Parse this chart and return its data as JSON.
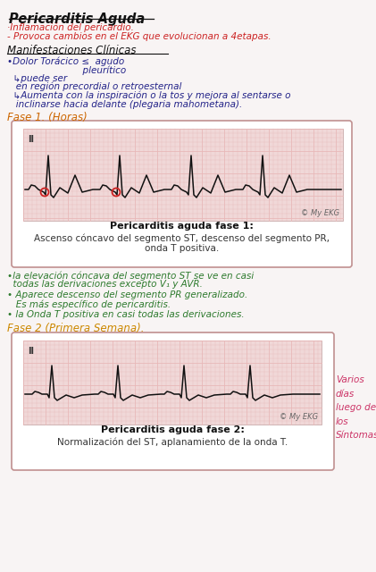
{
  "title": "Pericarditis Aguda",
  "line1": "·Inflamación del pericardio.",
  "line2": "- Provoca cambios en el EKG que evolucionan a 4etapas.",
  "section_clinica": "Manifestaciones Clínicas",
  "bullet1": "•Dolor Torácico ≤  agudo",
  "bullet1b": "                          pleurítico",
  "bullet1c": "  ↳puede ser",
  "bullet1d": "   en región precordial o retroesternal",
  "bullet1e": "  ↳Aumenta con la inspiración o la tos y mejora al sentarse o",
  "bullet1f": "   inclinarse hacia delante (plegaria mahometana).",
  "fase1_label": "Fase 1. (Horas)",
  "fase1_label_color": "#cc6600",
  "box1_title_bold": "Pericarditis aguda fase 1:",
  "box1_line1": "Ascenso cóncavo del segmento ST, descenso del segmento PR,",
  "box1_line2": "onda T positiva.",
  "myekg": "© My EKG",
  "notes_color": "#2d7a2d",
  "note1": "•la elevación cóncava del segmento ST se ve en casi",
  "note2": "  todas las derivaciones excepto V₁ y AVR.",
  "note3": "• Aparece descenso del segmento PR generalizado.",
  "note4": "   Es más específico de pericarditis.",
  "note5": "• la Onda T positiva en casi todas las derivaciones.",
  "fase2_label": "Fase 2 (Primera Semana).",
  "fase2_label_color": "#cc8800",
  "box2_title_bold": "Pericarditis aguda fase 2:",
  "box2_line1": "Normalización del ST, aplanamiento de la onda T.",
  "annotation_color": "#cc3366",
  "annotation_text": "Varios\ndías\nluego de\nlos\nSíntomas",
  "ekg_bg": "#f0d8d8",
  "ekg_grid_color": "#e8b8b8",
  "ekg_line_color": "#111111",
  "box_border_color": "#c09090",
  "box_fill_color": "#ffffff",
  "bg_color": "#f8f4f4"
}
